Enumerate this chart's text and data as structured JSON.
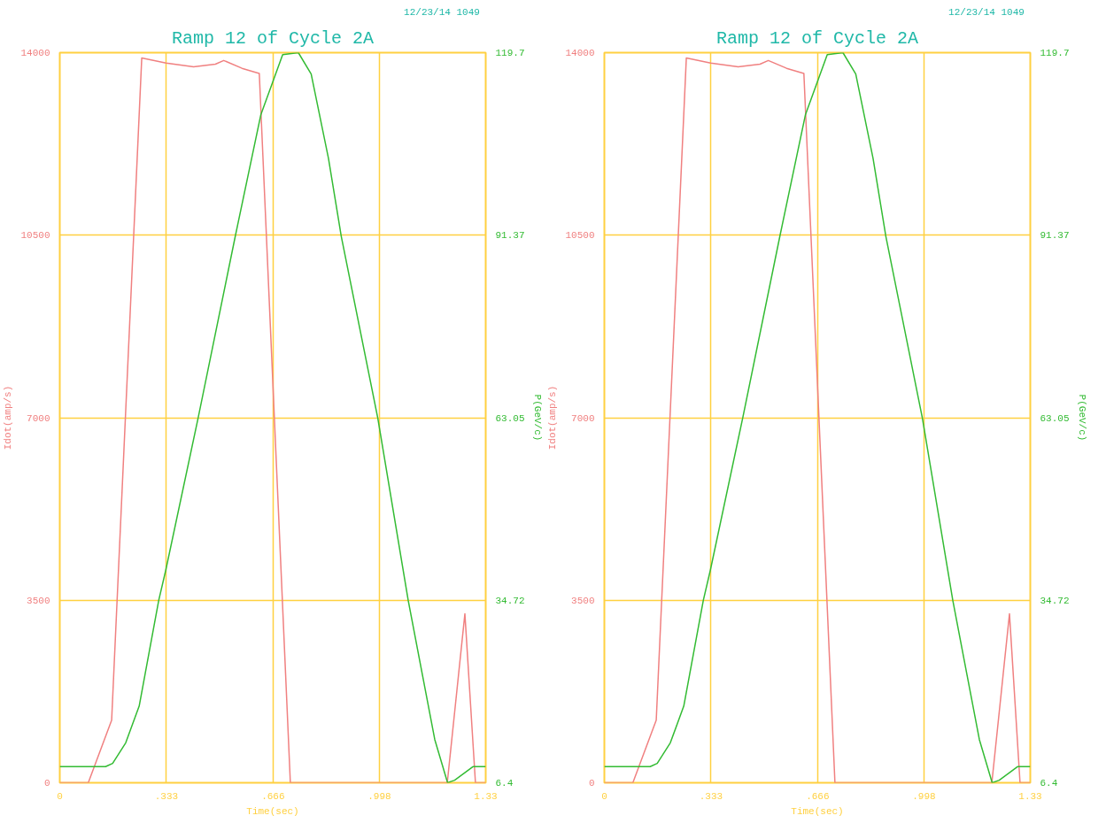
{
  "chart_data": [
    {
      "type": "line",
      "title": "Ramp 12 of Cycle 2A",
      "annotations": [
        "12/23/14  1049"
      ],
      "xlabel": "Time(sec)",
      "ylabel": "Idot(amp/s)",
      "y2label": "P(GeV/c)",
      "xlim": [
        0,
        1.33
      ],
      "xticks": [
        0,
        {
          "value": 0.333,
          "label": ".333"
        },
        {
          "value": 0.666,
          "label": ".666"
        },
        {
          "value": 0.998,
          "label": ".998"
        },
        1.33
      ],
      "ylim": [
        0,
        14000
      ],
      "yticks": [
        0,
        3500,
        7000,
        10500,
        14000
      ],
      "y2lim": [
        6.4,
        119.7
      ],
      "y2ticks": [
        6.4,
        34.72,
        63.05,
        91.37,
        119.7
      ],
      "grid": true,
      "series": [
        {
          "color": "#f08080",
          "x": [
            0,
            0.089,
            0.162,
            0.256,
            0.332,
            0.418,
            0.486,
            0.512,
            0.569,
            0.623,
            0.72,
            0.74,
            1.21,
            1.265,
            1.298,
            1.33
          ],
          "values": [
            0,
            0,
            1200,
            13900,
            13800,
            13730,
            13780,
            13850,
            13700,
            13600,
            0,
            0,
            0,
            3240,
            0,
            0
          ]
        },
        {
          "color": "#33bb33",
          "axis": "y2",
          "x": [
            0,
            0.143,
            0.165,
            0.206,
            0.248,
            0.309,
            0.331,
            0.432,
            0.548,
            0.628,
            0.696,
            0.745,
            0.785,
            0.839,
            0.879,
            0.993,
            1.088,
            1.171,
            1.211,
            1.233,
            1.29,
            1.33
          ],
          "values": [
            8.9,
            8.9,
            9.4,
            12.6,
            18.3,
            34.7,
            39.4,
            63.0,
            91.2,
            110.1,
            119.4,
            119.7,
            116.4,
            103.3,
            91.2,
            63.0,
            34.7,
            13.1,
            6.4,
            6.8,
            8.9,
            8.9
          ]
        }
      ]
    },
    {
      "type": "line",
      "title": "Ramp 12 of Cycle 2A",
      "annotations": [
        "12/23/14  1049"
      ],
      "xlabel": "Time(sec)",
      "ylabel": "Idot(amp/s)",
      "y2label": "P(GeV/c)",
      "xlim": [
        0,
        1.33
      ],
      "xticks": [
        0,
        {
          "value": 0.333,
          "label": ".333"
        },
        {
          "value": 0.666,
          "label": ".666"
        },
        {
          "value": 0.998,
          "label": ".998"
        },
        1.33
      ],
      "ylim": [
        0,
        14000
      ],
      "yticks": [
        0,
        3500,
        7000,
        10500,
        14000
      ],
      "y2lim": [
        6.4,
        119.7
      ],
      "y2ticks": [
        6.4,
        34.72,
        63.05,
        91.37,
        119.7
      ],
      "grid": true,
      "series": [
        {
          "color": "#f08080",
          "x": [
            0,
            0.089,
            0.162,
            0.256,
            0.332,
            0.418,
            0.486,
            0.512,
            0.569,
            0.623,
            0.72,
            0.74,
            1.21,
            1.265,
            1.298,
            1.33
          ],
          "values": [
            0,
            0,
            1200,
            13900,
            13800,
            13730,
            13780,
            13850,
            13700,
            13600,
            0,
            0,
            0,
            3240,
            0,
            0
          ]
        },
        {
          "color": "#33bb33",
          "axis": "y2",
          "x": [
            0,
            0.143,
            0.165,
            0.206,
            0.248,
            0.309,
            0.331,
            0.432,
            0.548,
            0.628,
            0.696,
            0.745,
            0.785,
            0.839,
            0.879,
            0.993,
            1.088,
            1.171,
            1.211,
            1.233,
            1.29,
            1.33
          ],
          "values": [
            8.9,
            8.9,
            9.4,
            12.6,
            18.3,
            34.7,
            39.4,
            63.0,
            91.2,
            110.1,
            119.4,
            119.7,
            116.4,
            103.3,
            91.2,
            63.0,
            34.7,
            13.1,
            6.4,
            6.8,
            8.9,
            8.9
          ]
        }
      ]
    }
  ]
}
